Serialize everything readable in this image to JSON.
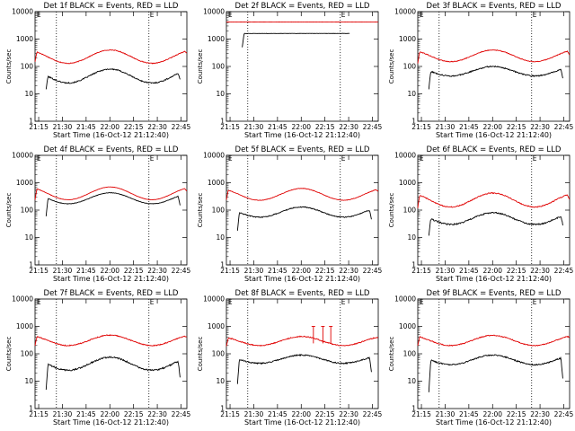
{
  "chart_data": [
    {
      "type": "line",
      "title": "Det 1f BLACK = Events, RED = LLD",
      "xlabel": "Start Time (16-Oct-12 21:12:40)",
      "ylabel": "Counts/sec",
      "xticks": [
        "21:15",
        "21:30",
        "21:45",
        "22:00",
        "22:15",
        "22:30",
        "22:45"
      ],
      "yticks": [
        "1",
        "10",
        "100",
        "1000",
        "10000"
      ],
      "ylim": [
        1,
        10000
      ],
      "xlim": [
        0,
        96
      ],
      "yscale": "log",
      "markers": [
        {
          "label": "E",
          "x": 0.5
        },
        {
          "label": "E",
          "x": 72
        }
      ],
      "vlines": [
        13.5,
        72
      ],
      "black_series": {
        "name": "Events",
        "shape": "double_hump",
        "start": 7,
        "end": 92,
        "base": 25,
        "peak": 80,
        "edge": 15,
        "noise": 0.05
      },
      "red_series": {
        "name": "LLD",
        "shape": "double_hump",
        "start": 0,
        "end": 96,
        "base": 130,
        "peak": 400,
        "edge": 150,
        "noise": 0.03
      },
      "spikes": []
    },
    {
      "type": "line",
      "title": "Det 2f BLACK = Events, RED = LLD",
      "xlabel": "Start Time (16-Oct-12 21:12:40)",
      "ylabel": "Counts/sec",
      "xticks": [
        "21:15",
        "21:30",
        "21:45",
        "22:00",
        "22:15",
        "22:30",
        "22:45"
      ],
      "yticks": [
        "1",
        "10",
        "100",
        "1000",
        "10000"
      ],
      "ylim": [
        1,
        10000
      ],
      "xlim": [
        0,
        96
      ],
      "yscale": "log",
      "markers": [
        {
          "label": "E",
          "x": 0.5
        },
        {
          "label": "E",
          "x": 72
        }
      ],
      "vlines": [
        13.5,
        72
      ],
      "black_series": {
        "name": "Events",
        "shape": "flat",
        "start": 10,
        "end": 78,
        "base": 1600,
        "peak": 1600,
        "edge": 500,
        "noise": 0.01
      },
      "red_series": {
        "name": "LLD",
        "shape": "flat",
        "start": 0,
        "end": 96,
        "base": 4200,
        "peak": 4200,
        "edge": 4200,
        "noise": 0.005
      },
      "spikes": []
    },
    {
      "type": "line",
      "title": "Det 3f BLACK = Events, RED = LLD",
      "xlabel": "Start Time (16-Oct-12 21:12:40)",
      "ylabel": "Counts/sec",
      "xticks": [
        "21:15",
        "21:30",
        "21:45",
        "22:00",
        "22:15",
        "22:30",
        "22:45"
      ],
      "yticks": [
        "1",
        "10",
        "100",
        "1000",
        "10000"
      ],
      "ylim": [
        1,
        10000
      ],
      "xlim": [
        0,
        96
      ],
      "yscale": "log",
      "markers": [
        {
          "label": "E",
          "x": 0.5
        },
        {
          "label": "E",
          "x": 72
        }
      ],
      "vlines": [
        13.5,
        72
      ],
      "black_series": {
        "name": "Events",
        "shape": "double_hump",
        "start": 7,
        "end": 92,
        "base": 45,
        "peak": 100,
        "edge": 15,
        "noise": 0.05
      },
      "red_series": {
        "name": "LLD",
        "shape": "double_hump",
        "start": 0,
        "end": 96,
        "base": 150,
        "peak": 400,
        "edge": 130,
        "noise": 0.03
      },
      "spikes": []
    },
    {
      "type": "line",
      "title": "Det 4f BLACK = Events, RED = LLD",
      "xlabel": "Start Time (16-Oct-12 21:12:40)",
      "ylabel": "Counts/sec",
      "xticks": [
        "21:15",
        "21:30",
        "21:45",
        "22:00",
        "22:15",
        "22:30",
        "22:45"
      ],
      "yticks": [
        "1",
        "10",
        "100",
        "1000",
        "10000"
      ],
      "ylim": [
        1,
        10000
      ],
      "xlim": [
        0,
        96
      ],
      "yscale": "log",
      "markers": [
        {
          "label": "E",
          "x": 0.5
        },
        {
          "label": "E",
          "x": 72
        }
      ],
      "vlines": [
        13.5,
        72
      ],
      "black_series": {
        "name": "Events",
        "shape": "double_hump",
        "start": 7,
        "end": 92,
        "base": 170,
        "peak": 430,
        "edge": 60,
        "noise": 0.02
      },
      "red_series": {
        "name": "LLD",
        "shape": "double_hump",
        "start": 0,
        "end": 96,
        "base": 240,
        "peak": 700,
        "edge": 240,
        "noise": 0.015
      },
      "spikes": []
    },
    {
      "type": "line",
      "title": "Det 5f BLACK = Events, RED = LLD",
      "xlabel": "Start Time (16-Oct-12 21:12:40)",
      "ylabel": "Counts/sec",
      "xticks": [
        "21:15",
        "21:30",
        "21:45",
        "22:00",
        "22:15",
        "22:30",
        "22:45"
      ],
      "yticks": [
        "1",
        "10",
        "100",
        "1000",
        "10000"
      ],
      "ylim": [
        1,
        10000
      ],
      "xlim": [
        0,
        96
      ],
      "yscale": "log",
      "markers": [
        {
          "label": "E",
          "x": 0.5
        },
        {
          "label": "E",
          "x": 72
        }
      ],
      "vlines": [
        13.5,
        72
      ],
      "black_series": {
        "name": "Events",
        "shape": "double_hump",
        "start": 7,
        "end": 92,
        "base": 55,
        "peak": 130,
        "edge": 18,
        "noise": 0.04
      },
      "red_series": {
        "name": "LLD",
        "shape": "double_hump",
        "start": 0,
        "end": 96,
        "base": 230,
        "peak": 620,
        "edge": 240,
        "noise": 0.02
      },
      "spikes": []
    },
    {
      "type": "line",
      "title": "Det 6f BLACK = Events, RED = LLD",
      "xlabel": "Start Time (16-Oct-12 21:12:40)",
      "ylabel": "Counts/sec",
      "xticks": [
        "21:15",
        "21:30",
        "21:45",
        "22:00",
        "22:15",
        "22:30",
        "22:45"
      ],
      "yticks": [
        "1",
        "10",
        "100",
        "1000",
        "10000"
      ],
      "ylim": [
        1,
        10000
      ],
      "xlim": [
        0,
        96
      ],
      "yscale": "log",
      "markers": [
        {
          "label": "E",
          "x": 0.5
        },
        {
          "label": "E",
          "x": 72
        }
      ],
      "vlines": [
        13.5,
        72
      ],
      "black_series": {
        "name": "Events",
        "shape": "double_hump",
        "start": 7,
        "end": 92,
        "base": 30,
        "peak": 80,
        "edge": 12,
        "noise": 0.06
      },
      "red_series": {
        "name": "LLD",
        "shape": "double_hump",
        "start": 0,
        "end": 96,
        "base": 130,
        "peak": 420,
        "edge": 120,
        "noise": 0.04
      },
      "spikes": []
    },
    {
      "type": "line",
      "title": "Det 7f BLACK = Events, RED = LLD",
      "xlabel": "Start Time (16-Oct-12 21:12:40)",
      "ylabel": "Counts/sec",
      "xticks": [
        "21:15",
        "21:30",
        "21:45",
        "22:00",
        "22:15",
        "22:30",
        "22:45"
      ],
      "yticks": [
        "1",
        "10",
        "100",
        "1000",
        "10000"
      ],
      "ylim": [
        1,
        10000
      ],
      "xlim": [
        0,
        96
      ],
      "yscale": "log",
      "markers": [
        {
          "label": "E",
          "x": 0.5
        },
        {
          "label": "E",
          "x": 72
        }
      ],
      "vlines": [
        13.5,
        72
      ],
      "black_series": {
        "name": "Events",
        "shape": "double_hump",
        "start": 7,
        "end": 92,
        "base": 25,
        "peak": 75,
        "edge": 5,
        "noise": 0.06
      },
      "red_series": {
        "name": "LLD",
        "shape": "double_hump",
        "start": 0,
        "end": 96,
        "base": 200,
        "peak": 480,
        "edge": 200,
        "noise": 0.04
      },
      "spikes": []
    },
    {
      "type": "line",
      "title": "Det 8f BLACK = Events, RED = LLD",
      "xlabel": "Start Time (16-Oct-12 21:12:40)",
      "ylabel": "Counts/sec",
      "xticks": [
        "21:15",
        "21:30",
        "21:45",
        "22:00",
        "22:15",
        "22:30",
        "22:45"
      ],
      "yticks": [
        "1",
        "10",
        "100",
        "1000",
        "10000"
      ],
      "ylim": [
        1,
        10000
      ],
      "xlim": [
        0,
        96
      ],
      "yscale": "log",
      "markers": [
        {
          "label": "E",
          "x": 0.5
        },
        {
          "label": "E",
          "x": 72
        }
      ],
      "vlines": [
        13.5,
        72
      ],
      "black_series": {
        "name": "Events",
        "shape": "double_hump",
        "start": 7,
        "end": 92,
        "base": 45,
        "peak": 90,
        "edge": 8,
        "noise": 0.05
      },
      "red_series": {
        "name": "LLD",
        "shape": "double_hump",
        "start": 0,
        "end": 96,
        "base": 200,
        "peak": 430,
        "edge": 190,
        "noise": 0.04
      },
      "spikes": [
        {
          "x": 55,
          "y": 1000
        },
        {
          "x": 61,
          "y": 1000
        },
        {
          "x": 66,
          "y": 1000
        }
      ]
    },
    {
      "type": "line",
      "title": "Det 9f BLACK = Events, RED = LLD",
      "xlabel": "Start Time (16-Oct-12 21:12:40)",
      "ylabel": "Counts/sec",
      "xticks": [
        "21:15",
        "21:30",
        "21:45",
        "22:00",
        "22:15",
        "22:30",
        "22:45"
      ],
      "yticks": [
        "1",
        "10",
        "100",
        "1000",
        "10000"
      ],
      "ylim": [
        1,
        10000
      ],
      "xlim": [
        0,
        96
      ],
      "yscale": "log",
      "markers": [
        {
          "label": "E",
          "x": 0.5
        },
        {
          "label": "E",
          "x": 72
        }
      ],
      "vlines": [
        13.5,
        72
      ],
      "black_series": {
        "name": "Events",
        "shape": "double_hump",
        "start": 7,
        "end": 92,
        "base": 40,
        "peak": 90,
        "edge": 4,
        "noise": 0.05
      },
      "red_series": {
        "name": "LLD",
        "shape": "double_hump",
        "start": 0,
        "end": 96,
        "base": 200,
        "peak": 470,
        "edge": 200,
        "noise": 0.04
      },
      "spikes": []
    }
  ],
  "colors": {
    "events": "#000000",
    "lld": "#e00000",
    "axes": "#000000",
    "background": "#ffffff"
  }
}
